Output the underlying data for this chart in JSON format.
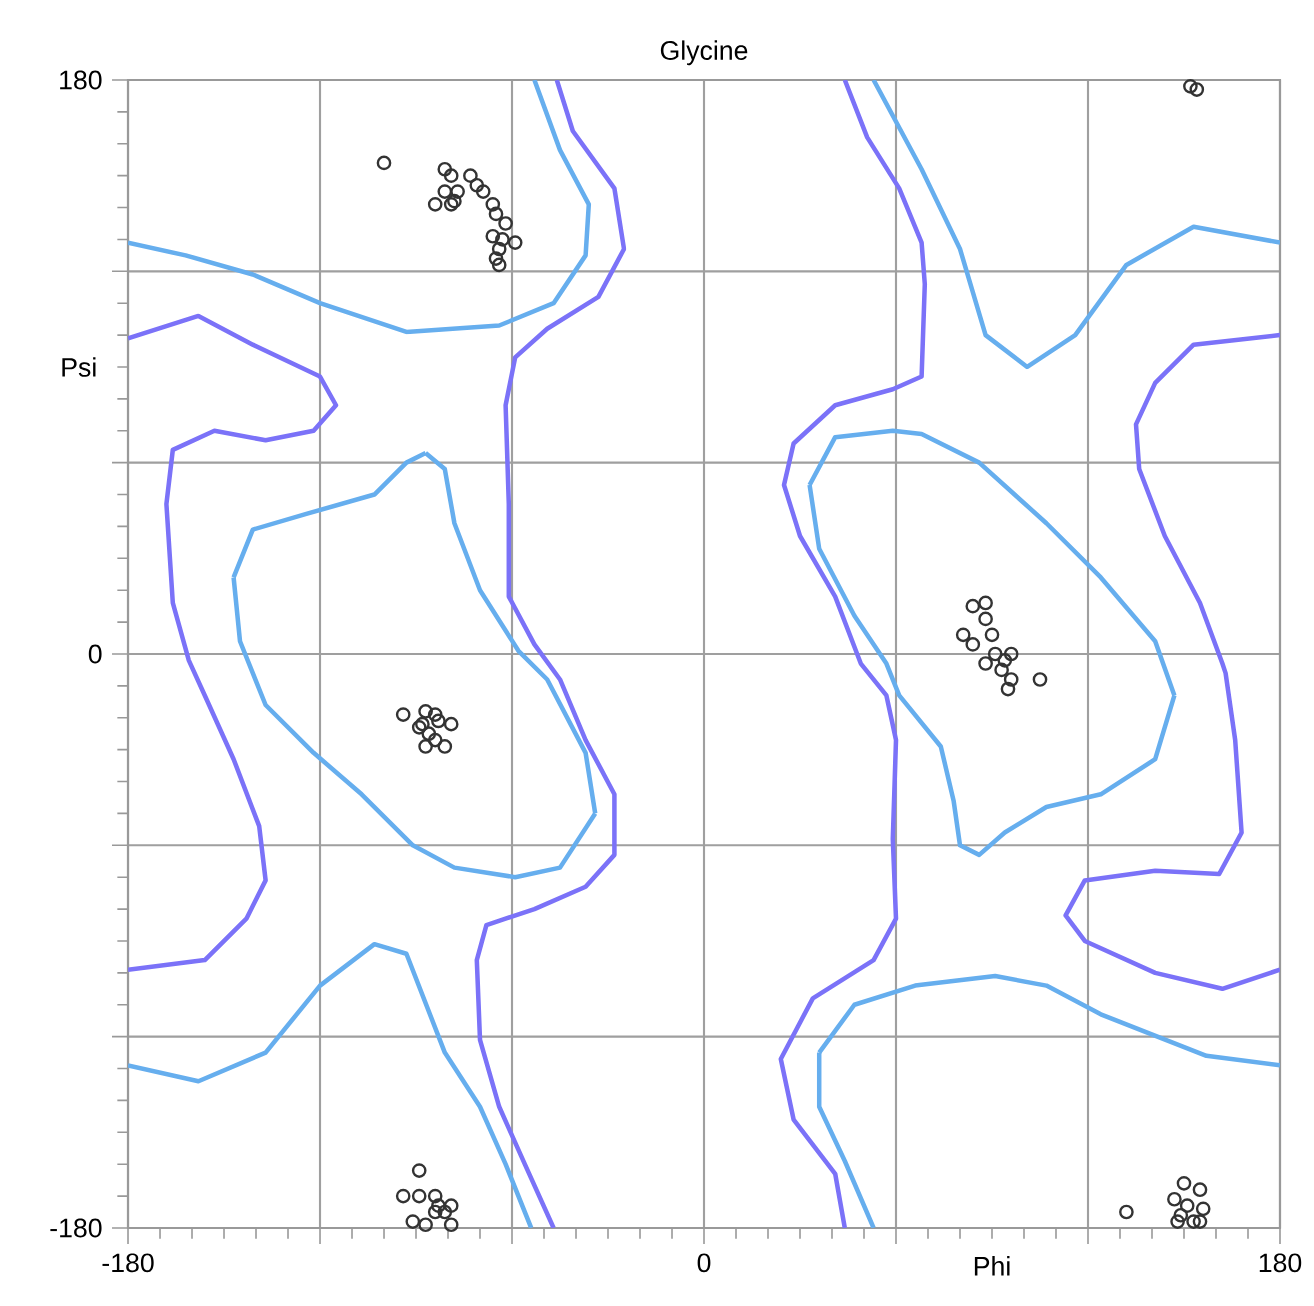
{
  "chart_data": {
    "type": "scatter",
    "title": "Glycine",
    "xlabel": "Phi",
    "ylabel": "Psi",
    "xlim": [
      -180,
      180
    ],
    "ylim": [
      -180,
      180
    ],
    "xticks": [
      -180,
      {
        "value": -120,
        "label": null
      },
      {
        "value": -60,
        "label": null
      },
      0,
      {
        "value": 60,
        "label": null
      },
      {
        "value": 120,
        "label": null
      },
      180
    ],
    "yticks": [
      -180,
      {
        "value": -120,
        "label": null
      },
      {
        "value": -60,
        "label": null
      },
      0,
      {
        "value": 60,
        "label": null
      },
      {
        "value": 120,
        "label": null
      },
      180
    ],
    "grid": true,
    "series": [
      {
        "type": "line",
        "color": "#66aeee",
        "x": [
          -180,
          -162,
          -141,
          -120,
          -93,
          -64,
          -47,
          -37,
          -36,
          -45,
          -53
        ],
        "values": [
          129,
          125,
          119,
          110,
          101,
          103,
          110,
          125,
          141,
          158,
          180
        ]
      },
      {
        "type": "line",
        "color": "#66aeee",
        "x": [
          -87,
          -81,
          -78,
          -70,
          -58,
          -49,
          -37,
          -34
        ],
        "values": [
          63,
          58,
          41,
          20,
          1,
          -8,
          -31,
          -50
        ]
      },
      {
        "type": "line",
        "color": "#66aeee",
        "x": [
          -34,
          -45,
          -59,
          -78,
          -91,
          -107,
          -122,
          -137,
          -145,
          -147
        ],
        "values": [
          -50,
          -67,
          -70,
          -67,
          -60,
          -44,
          -31,
          -16,
          4,
          24
        ]
      },
      {
        "type": "line",
        "color": "#66aeee",
        "x": [
          -147,
          -141,
          -124,
          -103,
          -93,
          -87
        ],
        "values": [
          24,
          39,
          44,
          50,
          60,
          63
        ]
      },
      {
        "type": "line",
        "color": "#66aeee",
        "x": [
          -180,
          -158,
          -137,
          -120,
          -103,
          -93,
          -81,
          -70,
          -62,
          -54
        ],
        "values": [
          -129,
          -134,
          -125,
          -104,
          -91,
          -94,
          -125,
          -142,
          -160,
          -180
        ]
      },
      {
        "type": "line",
        "color": "#66aeee",
        "x": [
          53,
          68,
          80,
          88,
          101,
          116,
          132,
          153,
          180
        ],
        "values": [
          180,
          152,
          127,
          100,
          90,
          100,
          122,
          134,
          129
        ]
      },
      {
        "type": "line",
        "color": "#66aeee",
        "x": [
          33,
          36,
          47,
          57,
          61,
          74,
          78,
          80,
          86,
          94,
          107,
          124,
          141,
          147
        ],
        "values": [
          53,
          33,
          12,
          -3,
          -13,
          -29,
          -46,
          -60,
          -63,
          -56,
          -48,
          -44,
          -33,
          -13
        ]
      },
      {
        "type": "line",
        "color": "#66aeee",
        "x": [
          147,
          141,
          124,
          107,
          86,
          68,
          59,
          41,
          33
        ],
        "values": [
          -13,
          4,
          24,
          41,
          60,
          69,
          70,
          68,
          53
        ]
      },
      {
        "type": "line",
        "color": "#66aeee",
        "x": [
          180,
          157,
          124,
          107,
          91,
          66,
          47,
          36
        ],
        "values": [
          -129,
          -126,
          -113,
          -104,
          -101,
          -104,
          -110,
          -125
        ]
      },
      {
        "type": "line",
        "color": "#66aeee",
        "x": [
          36,
          36,
          44,
          53
        ],
        "values": [
          -125,
          -142,
          -159,
          -180
        ]
      },
      {
        "type": "line",
        "color": "#7b72f8",
        "x": [
          -180,
          -158,
          -141,
          -120,
          -115,
          -122,
          -137,
          -153,
          -166,
          -168,
          -166,
          -161,
          -156,
          -147,
          -139,
          -137,
          -143,
          -156,
          -180
        ],
        "values": [
          99,
          106,
          97,
          87,
          78,
          70,
          67,
          70,
          64,
          47,
          16,
          -2,
          -13,
          -33,
          -54,
          -71,
          -83,
          -96,
          -99
        ]
      },
      {
        "type": "line",
        "color": "#7b72f8",
        "x": [
          -46,
          -41,
          -28,
          -25,
          -33,
          -49,
          -59,
          -62,
          -61,
          -61,
          -53,
          -45,
          -37,
          -28,
          -28,
          -37,
          -53,
          -68,
          -71,
          -70,
          -64,
          -56,
          -47
        ],
        "values": [
          180,
          164,
          146,
          127,
          112,
          102,
          93,
          78,
          47,
          18,
          3,
          -8,
          -27,
          -44,
          -63,
          -73,
          -80,
          -85,
          -96,
          -121,
          -142,
          -160,
          -180
        ]
      },
      {
        "type": "line",
        "color": "#7b72f8",
        "x": [
          44,
          51,
          61,
          68,
          69,
          68,
          59,
          41,
          28,
          25,
          30,
          41,
          49,
          57,
          60,
          59,
          60,
          53,
          34,
          24,
          28,
          41,
          44
        ],
        "values": [
          180,
          162,
          146,
          129,
          116,
          87,
          83,
          78,
          66,
          53,
          37,
          18,
          -3,
          -13,
          -27,
          -58,
          -83,
          -96,
          -108,
          -127,
          -146,
          -163,
          -180
        ]
      },
      {
        "type": "line",
        "color": "#7b72f8",
        "x": [
          180,
          153,
          141,
          135,
          136,
          144,
          155,
          162,
          163,
          166,
          168,
          161,
          141,
          119,
          113,
          119,
          141,
          162,
          180
        ],
        "values": [
          100,
          97,
          85,
          72,
          58,
          37,
          16,
          -3,
          -6,
          -27,
          -56,
          -69,
          -68,
          -71,
          -82,
          -90,
          -100,
          -105,
          -99
        ]
      },
      {
        "color": "#333333",
        "marker": "circle",
        "x": [
          -100,
          -81,
          -79,
          -84,
          -81,
          -78,
          -77,
          -79,
          -73,
          -71,
          -69,
          -66,
          -65,
          -62,
          -66,
          -63,
          -59,
          -64,
          -65,
          -64,
          -94,
          -87,
          -84,
          -89,
          -83,
          -79,
          -86,
          -84,
          -87,
          -81,
          -88,
          -89,
          -94,
          -89,
          -84,
          -83,
          -79,
          -84,
          -91,
          -87,
          -79,
          -81,
          84,
          88,
          88,
          90,
          81,
          84,
          91,
          96,
          88,
          93,
          96,
          95,
          105,
          94,
          152,
          154,
          132,
          150,
          155,
          147,
          151,
          156,
          149,
          153,
          155,
          148
        ],
        "values": [
          154,
          152,
          150,
          141,
          145,
          142,
          145,
          141,
          150,
          147,
          145,
          141,
          138,
          135,
          131,
          130,
          129,
          127,
          124,
          122,
          -19,
          -18,
          -19,
          -23,
          -21,
          -22,
          -25,
          -27,
          -29,
          -29,
          -22,
          -162,
          -170,
          -170,
          -170,
          -173,
          -173,
          -175,
          -178,
          -179,
          -179,
          -175,
          15,
          16,
          11,
          6,
          6,
          3,
          0,
          0,
          -3,
          -5,
          -8,
          -11,
          -8,
          -2,
          178,
          177,
          -175,
          -166,
          -168,
          -171,
          -173,
          -174,
          -176,
          -178,
          -178,
          -178
        ]
      }
    ]
  }
}
